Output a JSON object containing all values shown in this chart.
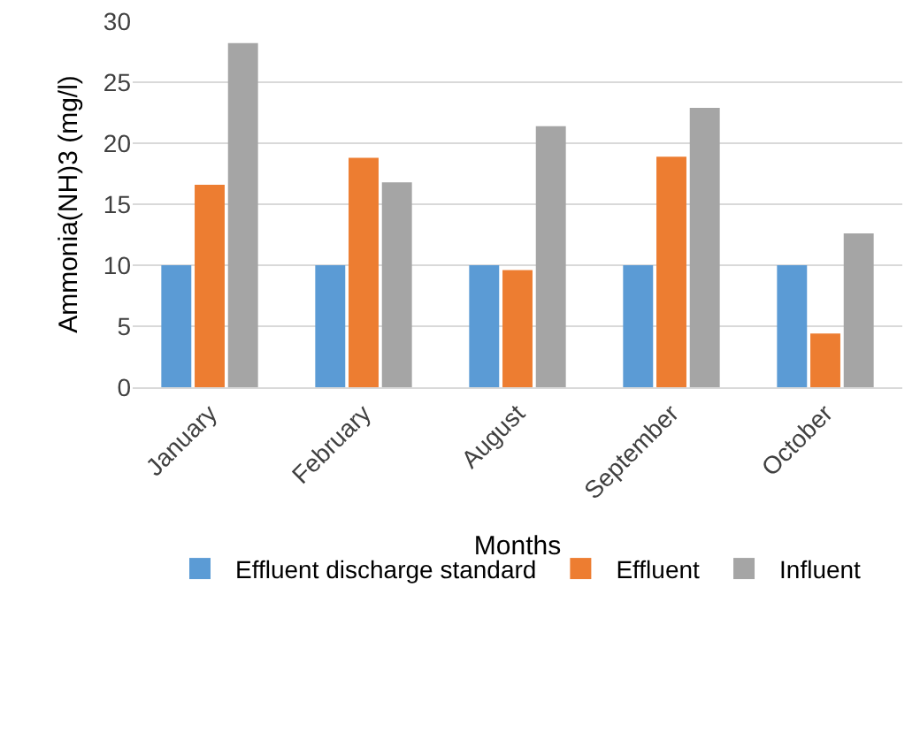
{
  "chart_data": {
    "type": "bar",
    "xlabel": "Months",
    "ylabel": "Ammonia(NH)3 (mg/l)",
    "categories": [
      "January",
      "February",
      "August",
      "September",
      "October"
    ],
    "series": [
      {
        "name": "Effluent discharge standard",
        "color": "#5b9bd5",
        "values": [
          10,
          10,
          10,
          10,
          10
        ]
      },
      {
        "name": "Effluent",
        "color": "#ed7d31",
        "values": [
          16.6,
          18.8,
          9.6,
          18.9,
          4.4
        ]
      },
      {
        "name": "Influent",
        "color": "#a5a5a5",
        "values": [
          28.2,
          16.8,
          21.4,
          22.9,
          12.6
        ]
      }
    ],
    "ylim": [
      0,
      30
    ],
    "yticks": [
      0,
      5,
      10,
      15,
      20,
      25,
      30
    ],
    "grid": "y",
    "legend": "bottom"
  }
}
